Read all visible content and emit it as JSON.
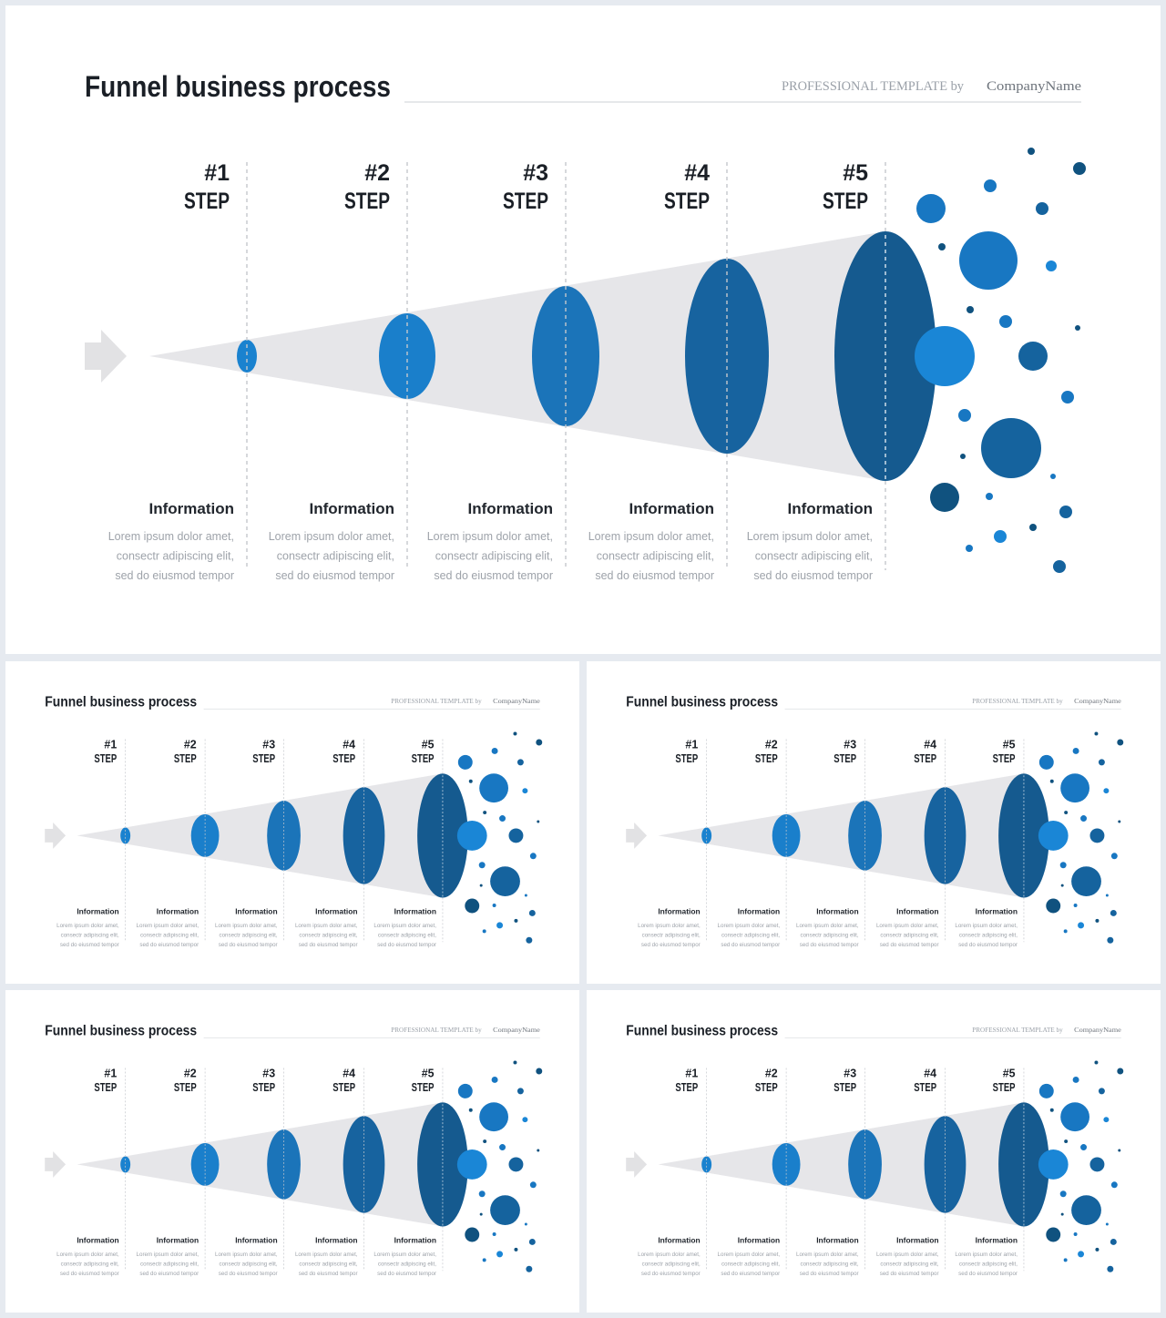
{
  "slide": {
    "title": "Funnel business process",
    "subtitle_prefix": "PROFESSIONAL TEMPLATE by",
    "subtitle_company": "CompanyName"
  },
  "steps": [
    {
      "number": "#1",
      "word": "STEP",
      "heading": "Information",
      "lines": [
        "Lorem ipsum dolor amet,",
        "consectr adipiscing elit,",
        "sed do eiusmod tempor"
      ]
    },
    {
      "number": "#2",
      "word": "STEP",
      "heading": "Information",
      "lines": [
        "Lorem ipsum dolor amet,",
        "consectr adipiscing elit,",
        "sed do eiusmod tempor"
      ]
    },
    {
      "number": "#3",
      "word": "STEP",
      "heading": "Information",
      "lines": [
        "Lorem ipsum dolor amet,",
        "consectr adipiscing elit,",
        "sed do eiusmod tempor"
      ]
    },
    {
      "number": "#4",
      "word": "STEP",
      "heading": "Information",
      "lines": [
        "Lorem ipsum dolor amet,",
        "consectr adipiscing elit,",
        "sed do eiusmod tempor"
      ]
    },
    {
      "number": "#5",
      "word": "STEP",
      "heading": "Information",
      "lines": [
        "Lorem ipsum dolor amet,",
        "consectr adipiscing elit,",
        "sed do eiusmod tempor"
      ]
    }
  ],
  "colors": {
    "funnel": "#e6e6e9",
    "arrow": "#e2e2e4",
    "step_fills": [
      "#1a82cf",
      "#1a7fcb",
      "#1b74b9",
      "#17639f",
      "#155a8f"
    ],
    "bubble_palette": [
      "#1877c2",
      "#1a86d6",
      "#15639e",
      "#10527f",
      "#1b7dca"
    ],
    "divider": "#c4c7cc"
  },
  "icons": {
    "entry_arrow": "arrow-right-icon",
    "bubble": "circle-dot-icon"
  }
}
